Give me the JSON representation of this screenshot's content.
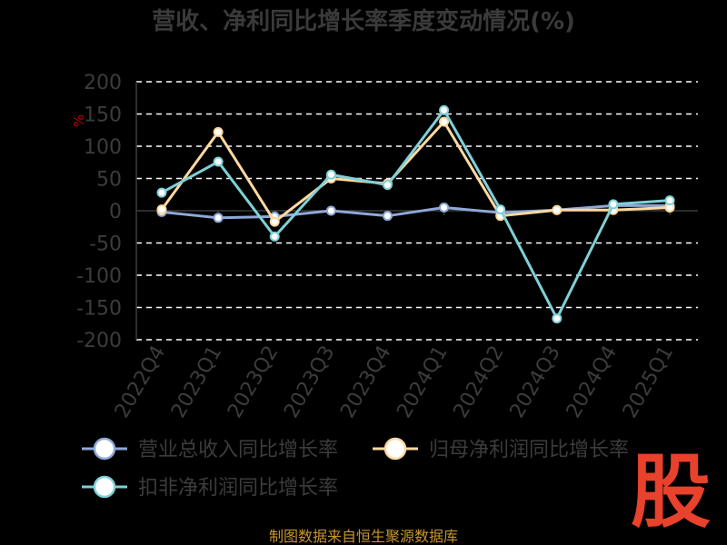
{
  "chart_data": {
    "type": "line",
    "title": "营收、净利同比增长率季度变动情况(%)",
    "ylabel": "%",
    "xlabel": "",
    "ylim": [
      -200,
      200
    ],
    "yticks": [
      200,
      150,
      100,
      50,
      0,
      -50,
      -100,
      -150,
      -200
    ],
    "categories": [
      "2022Q4",
      "2023Q1",
      "2023Q2",
      "2023Q3",
      "2023Q4",
      "2024Q1",
      "2024Q2",
      "2024Q3",
      "2024Q4",
      "2025Q1"
    ],
    "grid": true,
    "legend_position": "bottom",
    "series": [
      {
        "name": "营业总收入同比增长率",
        "color": "#8fa8d8",
        "values": [
          -2,
          -11,
          -9,
          0,
          -8,
          5,
          -3,
          1,
          8,
          8
        ]
      },
      {
        "name": "归母净利润同比增长率",
        "color": "#ffd9a0",
        "values": [
          2,
          122,
          -17,
          50,
          42,
          138,
          -8,
          1,
          1,
          5
        ]
      },
      {
        "name": "扣非净利润同比增长率",
        "color": "#80d0d8",
        "values": [
          28,
          76,
          -40,
          56,
          40,
          156,
          2,
          -167,
          10,
          16
        ]
      }
    ]
  },
  "footer": {
    "source": "制图数据来自恒生聚源数据库",
    "watermark": "股"
  },
  "colors": {
    "background": "#000000",
    "axis_text": "#3c3c3c",
    "grid": "#ffffff",
    "watermark": "#e8412c",
    "source_text": "#c8952f"
  }
}
